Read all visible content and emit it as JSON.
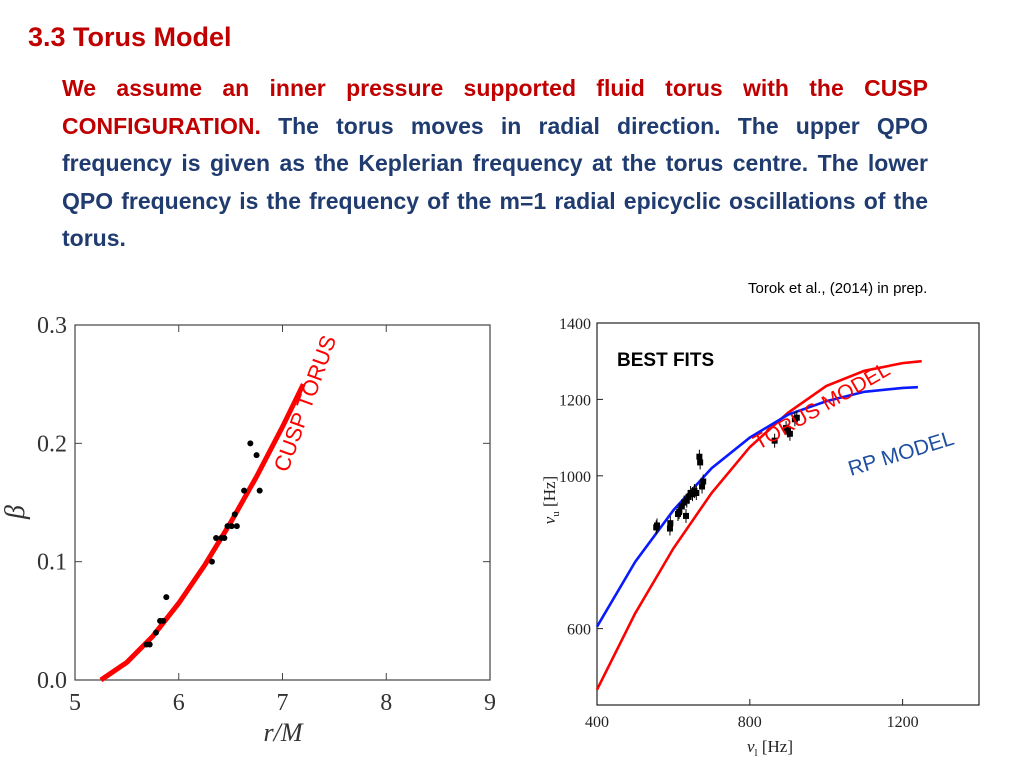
{
  "slide": {
    "title": "3.3 Torus Model",
    "para_red": "We assume an inner pressure supported fluid torus with the CUSP CONFIGURATION.",
    "para_blue": " The torus moves in radial direction.  The upper QPO frequency  is given as the Keplerian frequency at the torus centre. The lower QPO frequency is the frequency of the m=1 radial epicyclic oscillations of the torus.",
    "citation": "Torok et al., (2014) in prep."
  },
  "colors": {
    "red": "#ff0000",
    "blue": "#0a1aff",
    "title_red": "#c00000",
    "text_blue": "#1f3b6f"
  },
  "chart_data": [
    {
      "type": "scatter",
      "xlabel": "r/M",
      "ylabel": "β",
      "xlim": [
        5,
        9
      ],
      "ylim": [
        0,
        0.3
      ],
      "x_ticks": [
        "5",
        "6",
        "7",
        "8",
        "9"
      ],
      "y_ticks": [
        "0.0",
        "0.1",
        "0.2",
        "0.3"
      ],
      "annotation": "CUSP TORUS",
      "points": [
        [
          5.69,
          0.03
        ],
        [
          5.72,
          0.03
        ],
        [
          5.78,
          0.04
        ],
        [
          5.82,
          0.05
        ],
        [
          5.85,
          0.05
        ],
        [
          5.88,
          0.07
        ],
        [
          6.32,
          0.1
        ],
        [
          6.36,
          0.12
        ],
        [
          6.41,
          0.12
        ],
        [
          6.44,
          0.12
        ],
        [
          6.47,
          0.13
        ],
        [
          6.51,
          0.13
        ],
        [
          6.54,
          0.14
        ],
        [
          6.56,
          0.13
        ],
        [
          6.63,
          0.16
        ],
        [
          6.69,
          0.2
        ],
        [
          6.75,
          0.19
        ],
        [
          6.78,
          0.16
        ]
      ],
      "series": [
        {
          "label": "CUSP TORUS",
          "color": "#ff0000",
          "x": [
            5.25,
            5.5,
            5.75,
            6.0,
            6.25,
            6.5,
            6.75,
            7.0,
            7.2
          ],
          "y": [
            0.0,
            0.015,
            0.037,
            0.065,
            0.097,
            0.133,
            0.172,
            0.214,
            0.25
          ]
        }
      ]
    },
    {
      "type": "line",
      "title": "BEST FITS",
      "xlabel": "ν_l  [Hz]",
      "ylabel": "ν_u  [Hz]",
      "xlim": [
        400,
        1400
      ],
      "ylim": [
        400,
        1400
      ],
      "x_ticks": [
        "400",
        "800",
        "1200"
      ],
      "y_ticks": [
        "600",
        "1000",
        "1200",
        "1400"
      ],
      "series": [
        {
          "name": "TORUS MODEL",
          "color": "#ff0000",
          "x": [
            400,
            500,
            600,
            700,
            800,
            900,
            1000,
            1100,
            1200,
            1250
          ],
          "y": [
            440,
            640,
            810,
            955,
            1075,
            1165,
            1235,
            1275,
            1295,
            1300
          ]
        },
        {
          "name": "RP MODEL",
          "color": "#0a1aff",
          "x": [
            400,
            500,
            600,
            700,
            800,
            900,
            1000,
            1100,
            1200,
            1240
          ],
          "y": [
            605,
            775,
            910,
            1020,
            1100,
            1160,
            1195,
            1220,
            1230,
            1232
          ]
        }
      ],
      "points": [
        [
          555,
          865
        ],
        [
          557,
          870
        ],
        [
          591,
          862
        ],
        [
          592,
          876
        ],
        [
          612,
          900
        ],
        [
          615,
          905
        ],
        [
          622,
          920
        ],
        [
          628,
          930
        ],
        [
          633,
          895
        ],
        [
          635,
          935
        ],
        [
          640,
          945
        ],
        [
          645,
          955
        ],
        [
          650,
          952
        ],
        [
          655,
          960
        ],
        [
          660,
          955
        ],
        [
          668,
          1050
        ],
        [
          670,
          1035
        ],
        [
          675,
          972
        ],
        [
          678,
          985
        ],
        [
          865,
          1092
        ],
        [
          895,
          1125
        ],
        [
          900,
          1118
        ],
        [
          905,
          1110
        ],
        [
          918,
          1148
        ],
        [
          923,
          1152
        ]
      ]
    }
  ]
}
